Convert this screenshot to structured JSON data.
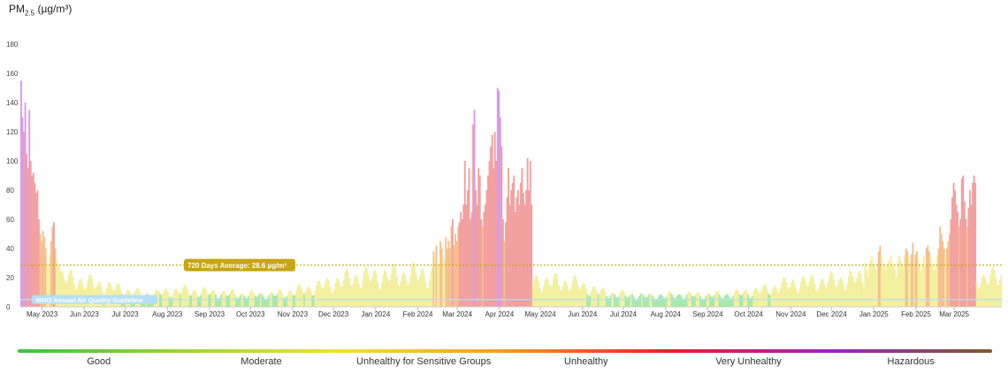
{
  "chart_data": {
    "type": "bar",
    "unit_label": {
      "base": "PM",
      "sub": "2.5",
      "unit": " (µg/m³)"
    },
    "ylim": [
      0,
      180
    ],
    "y_ticks": [
      0,
      20,
      40,
      60,
      80,
      100,
      120,
      140,
      160,
      180
    ],
    "x_range": [
      "2023-04-15",
      "2025-04-05"
    ],
    "x_ticks": [
      {
        "label": "May 2023",
        "date": "2023-05-01"
      },
      {
        "label": "Jun 2023",
        "date": "2023-06-01"
      },
      {
        "label": "Jul 2023",
        "date": "2023-07-01"
      },
      {
        "label": "Aug 2023",
        "date": "2023-08-01"
      },
      {
        "label": "Sep 2023",
        "date": "2023-09-01"
      },
      {
        "label": "Oct 2023",
        "date": "2023-10-01"
      },
      {
        "label": "Nov 2023",
        "date": "2023-11-01"
      },
      {
        "label": "Dec 2023",
        "date": "2023-12-01"
      },
      {
        "label": "Jan 2024",
        "date": "2024-01-01"
      },
      {
        "label": "Feb 2024",
        "date": "2024-02-01"
      },
      {
        "label": "Mar 2024",
        "date": "2024-03-01"
      },
      {
        "label": "Apr 2024",
        "date": "2024-04-01"
      },
      {
        "label": "May 2024",
        "date": "2024-05-01"
      },
      {
        "label": "Jun 2024",
        "date": "2024-06-01"
      },
      {
        "label": "Jul 2024",
        "date": "2024-07-01"
      },
      {
        "label": "Aug 2024",
        "date": "2024-08-01"
      },
      {
        "label": "Sep 2024",
        "date": "2024-09-01"
      },
      {
        "label": "Oct 2024",
        "date": "2024-10-01"
      },
      {
        "label": "Nov 2024",
        "date": "2024-11-01"
      },
      {
        "label": "Dec 2024",
        "date": "2024-12-01"
      },
      {
        "label": "Jan 2025",
        "date": "2025-01-01"
      },
      {
        "label": "Feb 2025",
        "date": "2025-02-01"
      },
      {
        "label": "Mar 2025",
        "date": "2025-03-01"
      }
    ],
    "daily_series": [
      {
        "start": "2023-04-15",
        "values": [
          155,
          130,
          120,
          140,
          105,
          95,
          135,
          100,
          90,
          92,
          85,
          78,
          80,
          60,
          50,
          45,
          52,
          48,
          40,
          30,
          28,
          35,
          45,
          55,
          58,
          40,
          32,
          30,
          28,
          25
        ]
      },
      {
        "start": "2024-02-12",
        "values": [
          38,
          35,
          42,
          30,
          28,
          45,
          40,
          35,
          32,
          48,
          40,
          45,
          40,
          55,
          60,
          42,
          50,
          45,
          55,
          58,
          65,
          60,
          70,
          100,
          70,
          80,
          95,
          60,
          65,
          125,
          135,
          80,
          70,
          95,
          90,
          60,
          55,
          65,
          70,
          80,
          90,
          100,
          110,
          118,
          95,
          120,
          100,
          150,
          148,
          130,
          110,
          60,
          45,
          58,
          75,
          95,
          70,
          80,
          85,
          90,
          65,
          75,
          80,
          70,
          85,
          95,
          78,
          70,
          80,
          102,
          80,
          100,
          70
        ]
      },
      {
        "start": "2024-12-25",
        "values": [
          30,
          25,
          20,
          28,
          32,
          35,
          30,
          28,
          25,
          30,
          38,
          42,
          35,
          28,
          30,
          25,
          28,
          32,
          30,
          35,
          30,
          28,
          25,
          20,
          30,
          35,
          32,
          30,
          28,
          35,
          40,
          38,
          35,
          30,
          36,
          44,
          30,
          36,
          38,
          34,
          30,
          25,
          30,
          35,
          28,
          40,
          42,
          38,
          35,
          30,
          28,
          25,
          30,
          35,
          40,
          55,
          50,
          45,
          40,
          35,
          40,
          45,
          50,
          60,
          75,
          85,
          80,
          70,
          65,
          55,
          60,
          88,
          90,
          72,
          60,
          55,
          68,
          80,
          70,
          85,
          90,
          85
        ]
      }
    ],
    "baseline_profile": [
      {
        "date": "2023-05-15",
        "value": 25
      },
      {
        "date": "2023-06-15",
        "value": 18
      },
      {
        "date": "2023-07-15",
        "value": 10
      },
      {
        "date": "2023-08-10",
        "value": 14
      },
      {
        "date": "2023-09-15",
        "value": 11
      },
      {
        "date": "2023-10-15",
        "value": 10
      },
      {
        "date": "2023-11-15",
        "value": 16
      },
      {
        "date": "2023-12-15",
        "value": 25
      },
      {
        "date": "2024-01-15",
        "value": 27
      },
      {
        "date": "2024-02-01",
        "value": 28
      },
      {
        "date": "2024-05-25",
        "value": 20
      },
      {
        "date": "2024-06-15",
        "value": 12
      },
      {
        "date": "2024-07-15",
        "value": 9
      },
      {
        "date": "2024-08-15",
        "value": 10
      },
      {
        "date": "2024-09-15",
        "value": 10
      },
      {
        "date": "2024-10-10",
        "value": 14
      },
      {
        "date": "2024-11-01",
        "value": 20
      },
      {
        "date": "2024-12-01",
        "value": 22
      },
      {
        "date": "2024-12-25",
        "value": 25
      }
    ],
    "color_bands": [
      {
        "max": 9,
        "color": "#a7e9ac"
      },
      {
        "max": 35.4,
        "color": "#f3f0a0"
      },
      {
        "max": 55.4,
        "color": "#f6c08e"
      },
      {
        "max": 125.4,
        "color": "#f2a0a0"
      },
      {
        "max": 225.4,
        "color": "#d89be6"
      }
    ],
    "average": {
      "value": 28.6,
      "label": "720 Days Average: 28.6 µg/m³",
      "color": "#c7a514"
    },
    "who_guideline": {
      "value": 5,
      "label": "WHO Annual Air Quality Guideline",
      "color": "#b5dff5"
    }
  },
  "legend": {
    "gradient": [
      "#37c53d",
      "#9bd43a",
      "#f0e135",
      "#f29a1e",
      "#e8202a",
      "#9c1fc6",
      "#7e5a28"
    ],
    "items": [
      {
        "label": "Good",
        "color": "#37c53d"
      },
      {
        "label": "Moderate",
        "color": "#f0e135"
      },
      {
        "label": "Unhealthy for Sensitive Groups",
        "color": "#f29a1e"
      },
      {
        "label": "Unhealthy",
        "color": "#e8202a"
      },
      {
        "label": "Very Unhealthy",
        "color": "#9c1fc6"
      },
      {
        "label": "Hazardous",
        "color": "#7e5a28"
      }
    ]
  }
}
